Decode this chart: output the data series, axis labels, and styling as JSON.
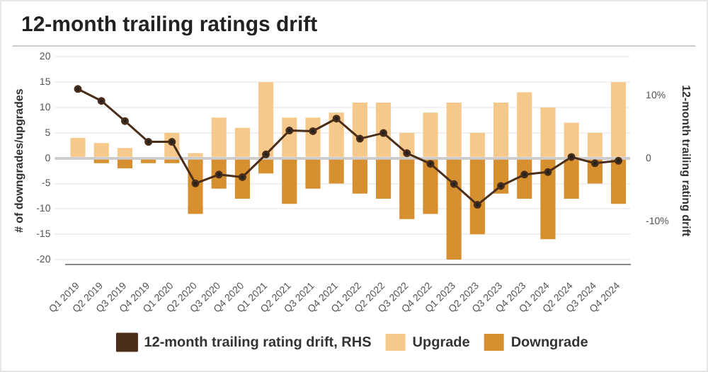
{
  "chart_data": {
    "type": "bar",
    "title": "12-month trailing ratings drift",
    "ylabel": "# of downgrades/upgrades",
    "y2label": "12-month trailing rating drift",
    "categories": [
      "Q1 2019",
      "Q2 2019",
      "Q3 2019",
      "Q4 2019",
      "Q1 2020",
      "Q2 2020",
      "Q3 2020",
      "Q4 2020",
      "Q1 2021",
      "Q2 2021",
      "Q3 2021",
      "Q4 2021",
      "Q1 2022",
      "Q2 2022",
      "Q3 2022",
      "Q4 2022",
      "Q1 2023",
      "Q2 2023",
      "Q3 2023",
      "Q4 2023",
      "Q1 2024",
      "Q2 2024",
      "Q3 2024",
      "Q4 2024"
    ],
    "stacked": true,
    "series": [
      {
        "name": "Upgrade",
        "color": "#f5c98b",
        "values": [
          4,
          3,
          2,
          0,
          5,
          1,
          8,
          6,
          15,
          8,
          8,
          9,
          11,
          11,
          5,
          9,
          11,
          5,
          11,
          13,
          10,
          7,
          5,
          15
        ]
      },
      {
        "name": "Downgrade",
        "color": "#d69030",
        "values": [
          0,
          -1,
          -2,
          -1,
          -1,
          -11,
          -6,
          -8,
          -3,
          -9,
          -6,
          -5,
          -7,
          -8,
          -12,
          -11,
          -20,
          -15,
          -7,
          -8,
          -16,
          -8,
          -5,
          -9
        ]
      },
      {
        "name": "12-month trailing rating drift, RHS",
        "type": "line",
        "axis": "y2",
        "color": "#4a2e1a",
        "values": [
          11.0,
          9.1,
          5.9,
          2.6,
          2.6,
          -4.0,
          -2.6,
          -3.0,
          0.6,
          4.4,
          4.3,
          6.3,
          3.1,
          4.0,
          0.8,
          -0.9,
          -4.1,
          -7.4,
          -4.4,
          -2.6,
          -2.2,
          0.2,
          -0.8,
          -0.4
        ]
      }
    ],
    "ylim": [
      -21,
      20
    ],
    "yticks": [
      -20,
      -15,
      -10,
      -5,
      0,
      5,
      10,
      15,
      20
    ],
    "y2lim": [
      -16.9,
      16.1
    ],
    "y2ticks": [
      {
        "value": -10,
        "label": "-10%"
      },
      0,
      {
        "value": 10,
        "label": "10%"
      }
    ],
    "grid": "y",
    "legend": "bottom",
    "marker": "circle",
    "line_style": "solid"
  }
}
